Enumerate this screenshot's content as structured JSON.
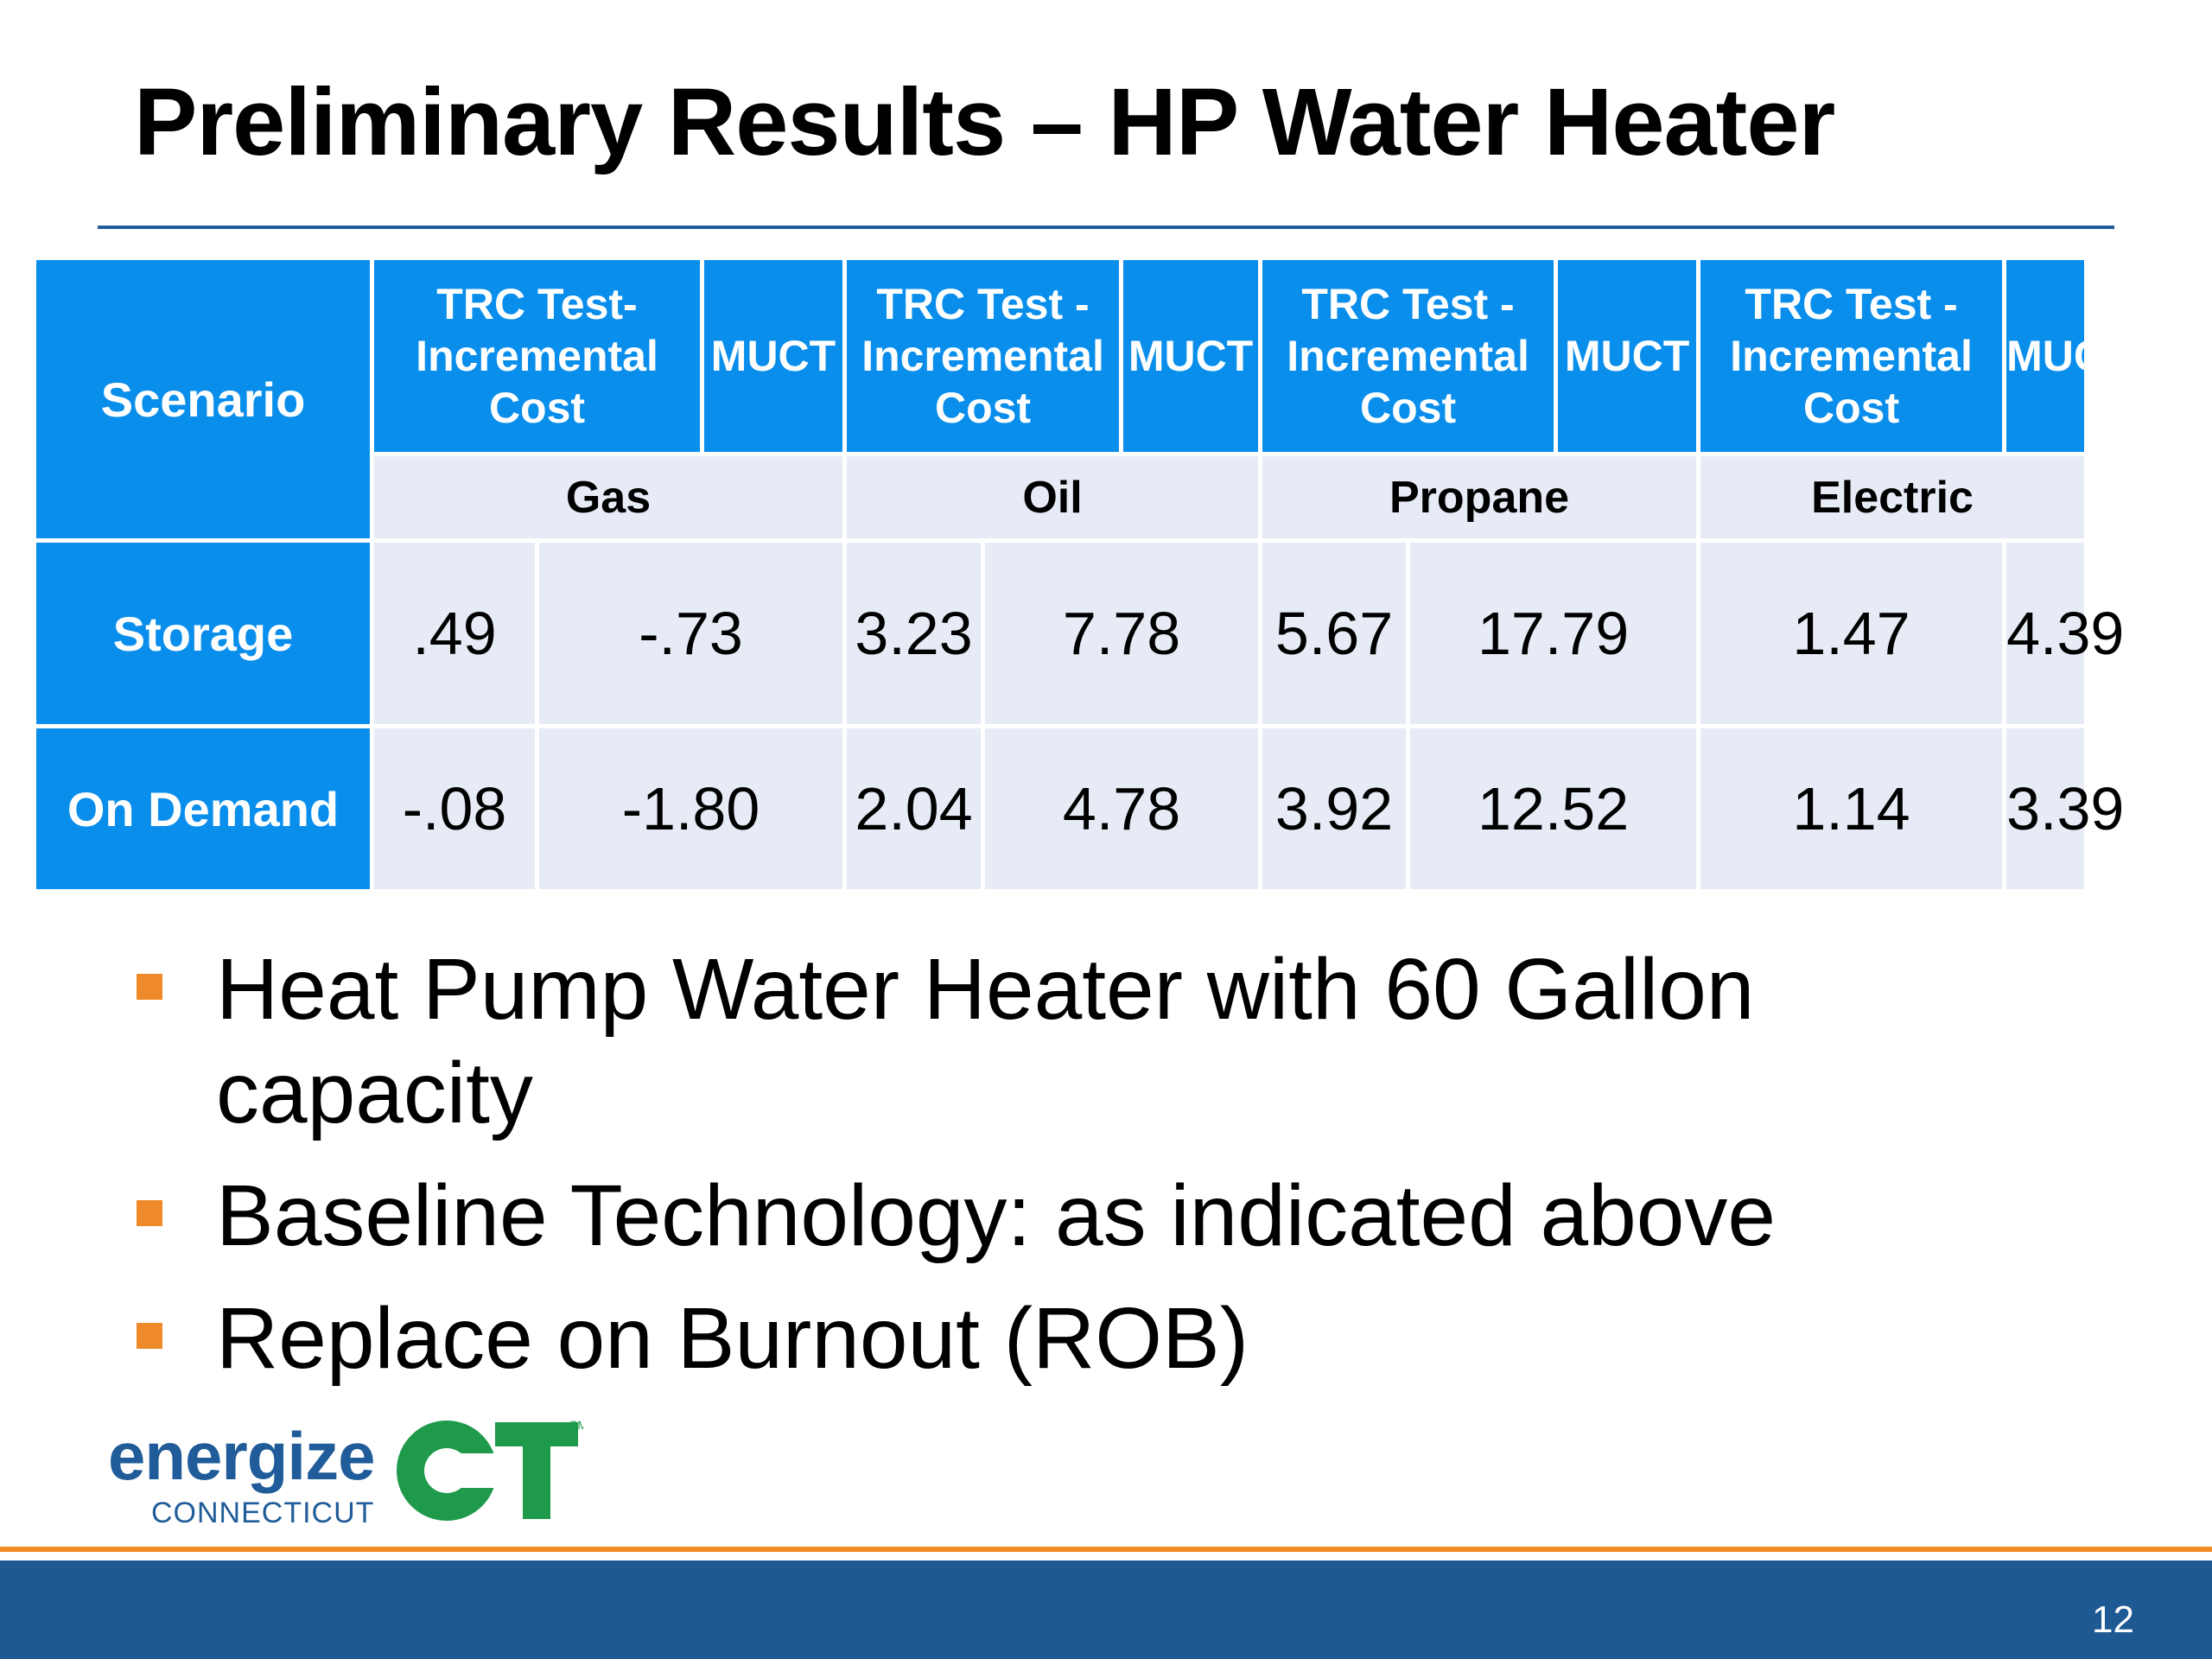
{
  "slide": {
    "title": "Preliminary Results – HP Water Heater",
    "page_number": "12"
  },
  "table": {
    "scenario_header": "Scenario",
    "col_headers": [
      {
        "trc": "TRC Test-\nIncremental\nCost",
        "muct": "MUCT"
      },
      {
        "trc": "TRC Test -\nIncremental\nCost",
        "muct": "MUCT"
      },
      {
        "trc": "TRC Test -\nIncremental\nCost",
        "muct": "MUCT"
      },
      {
        "trc": "TRC Test -\nIncremental\nCost",
        "muct": "MUCT"
      }
    ],
    "fuels": [
      "Gas",
      "Oil",
      "Propane",
      "Electric"
    ],
    "rows": [
      {
        "label": "Storage",
        "values": [
          ".49",
          "-.73",
          "3.23",
          "7.78",
          "5.67",
          "17.79",
          "1.47",
          "4.39"
        ]
      },
      {
        "label": "On Demand",
        "values": [
          "-.08",
          "-1.80",
          "2.04",
          "4.78",
          "3.92",
          "12.52",
          "1.14",
          "3.39"
        ]
      }
    ]
  },
  "bullets": [
    "Heat Pump Water Heater with 60 Gallon capacity",
    "Baseline Technology: as indicated above",
    "Replace on Burnout (ROB)"
  ],
  "logo": {
    "word": "energize",
    "sub": "CONNECTICUT",
    "mark": "CT",
    "sm": "SM"
  },
  "colors": {
    "header_blue": "#0a8eec",
    "cell_light": "#e7ebf6",
    "footer_blue": "#1f5993",
    "accent_orange": "#f08a24",
    "logo_green": "#1e9a4a"
  }
}
